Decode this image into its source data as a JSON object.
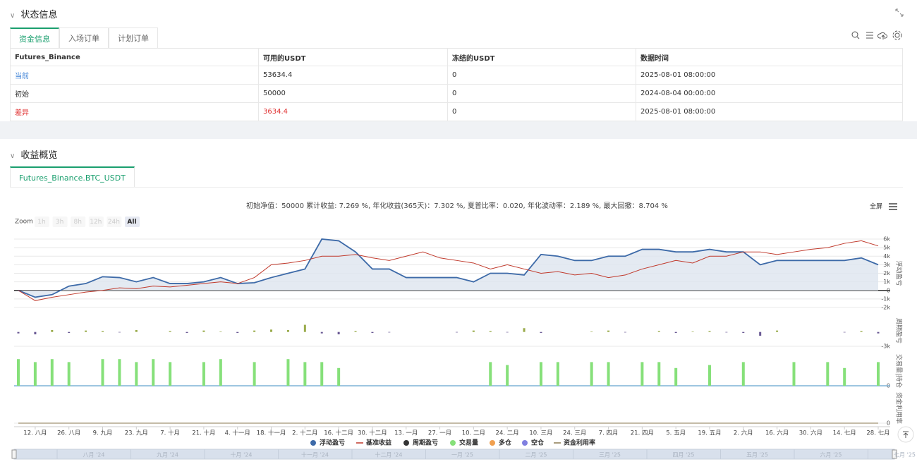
{
  "status": {
    "title": "状态信息",
    "tabs": [
      "资金信息",
      "入场订单",
      "计划订单"
    ],
    "table": {
      "header": [
        "Futures_Binance",
        "可用的USDT",
        "冻结的USDT",
        "数据时间"
      ],
      "rows": [
        [
          "当前",
          "53634.4",
          "0",
          "2025-08-01 08:00:00"
        ],
        [
          "初始",
          "50000",
          "0",
          "2024-08-04 00:00:00"
        ],
        [
          "差异",
          "3634.4",
          "0",
          "2025-08-01 08:00:00"
        ]
      ]
    }
  },
  "overview": {
    "title": "收益概览",
    "tab": "Futures_Binance.BTC_USDT",
    "summary": "初始净值：50000 累计收益: 7.269 %, 年化收益(365天)：7.302 %, 夏普比率：0.020, 年化波动率：2.189 %, 最大回撤：8.704 %",
    "fullscreen": "全屏",
    "zoom": {
      "label": "Zoom",
      "buttons": [
        "1h",
        "3h",
        "8h",
        "12h",
        "24h",
        "All"
      ]
    },
    "navigator": [
      "八月 '24",
      "九月 '24",
      "十月 '24",
      "十一月 '24",
      "十二月 '24",
      "一月 '25",
      "二月 '25",
      "三月 '25",
      "四月 '25",
      "五月 '25",
      "六月 '25",
      "七月 '25"
    ]
  },
  "chart_data": {
    "type": "line",
    "categories": [
      null,
      "12. 八月",
      null,
      "26. 八月",
      null,
      "9. 九月",
      null,
      "23. 九月",
      null,
      "7. 十月",
      null,
      "21. 十月",
      null,
      "4. 十一月",
      null,
      "18. 十一月",
      null,
      "2. 十二月",
      null,
      "16. 十二月",
      null,
      "30. 十二月",
      null,
      "13. 一月",
      null,
      "27. 一月",
      null,
      "10. 二月",
      null,
      "24. 二月",
      null,
      "10. 三月",
      null,
      "24. 三月",
      null,
      "7. 四月",
      null,
      "21. 四月",
      null,
      "5. 五月",
      null,
      "19. 五月",
      null,
      "2. 六月",
      null,
      "16. 六月",
      null,
      "30. 六月",
      null,
      "14. 七月",
      null,
      "28. 七月"
    ],
    "panels": [
      {
        "axis_label": "浮动盈亏",
        "ylim": [
          -2000,
          6000
        ],
        "yticks": [
          {
            "value": 6000,
            "label": "6k"
          },
          {
            "value": 5000,
            "label": "5k"
          },
          {
            "value": 4000,
            "label": "4k"
          },
          {
            "value": 3000,
            "label": "3k"
          },
          {
            "value": 2000,
            "label": "2k"
          },
          {
            "value": 1000,
            "label": "1k"
          },
          0,
          {
            "value": -1000,
            "label": "-1k"
          },
          {
            "value": -2000,
            "label": "-2k"
          }
        ],
        "series": [
          {
            "name": "浮动盈亏",
            "kind": "area",
            "color": "#3d6aa8",
            "values": [
              0,
              -800,
              -500,
              500,
              800,
              1600,
              1500,
              1000,
              1500,
              800,
              800,
              1000,
              1500,
              800,
              900,
              1500,
              2000,
              2500,
              6000,
              5800,
              4500,
              2500,
              2500,
              1500,
              1500,
              1500,
              1500,
              1000,
              2000,
              2000,
              1800,
              4200,
              4000,
              3500,
              3500,
              4000,
              4000,
              4800,
              4800,
              4500,
              4500,
              4800,
              4500,
              4500,
              3000,
              3500,
              3500,
              3500,
              3500,
              3500,
              3800,
              3000
            ]
          },
          {
            "name": "基准收益",
            "kind": "line",
            "color": "#c0392b",
            "values": [
              0,
              -1200,
              -800,
              -500,
              -200,
              0,
              300,
              200,
              500,
              400,
              600,
              800,
              1000,
              800,
              1500,
              3000,
              3200,
              3500,
              4000,
              4000,
              4200,
              3800,
              3500,
              4000,
              4500,
              3800,
              3500,
              3200,
              2500,
              3000,
              2500,
              2000,
              2200,
              1800,
              2000,
              1500,
              1800,
              2500,
              3000,
              3500,
              3200,
              4000,
              4000,
              4500,
              4500,
              4200,
              4500,
              4800,
              5000,
              5500,
              5800,
              5200
            ]
          }
        ]
      },
      {
        "axis_label": "周期盈亏",
        "ylim": [
          -3000,
          3500
        ],
        "yticks": [
          {
            "value": -3000,
            "label": "-3k"
          }
        ],
        "series": [
          {
            "name": "周期盈亏",
            "kind": "bar",
            "color": "#333333",
            "positive_color": "#9aab4b",
            "negative_color": "#6b5b95",
            "values": [
              -300,
              -500,
              400,
              -200,
              300,
              200,
              -100,
              400,
              0,
              200,
              -200,
              300,
              100,
              -200,
              300,
              500,
              400,
              1500,
              -300,
              -500,
              200,
              -200,
              -100,
              0,
              0,
              0,
              -100,
              300,
              200,
              -100,
              800,
              -200,
              0,
              0,
              100,
              300,
              -100,
              0,
              200,
              -200,
              100,
              200,
              -100,
              -200,
              -800,
              300,
              0,
              0,
              0,
              -100,
              200,
              -300
            ]
          }
        ]
      },
      {
        "axis_label": "交易量|持仓",
        "ylim": [
          0,
          50
        ],
        "yticks": [
          0
        ],
        "series": [
          {
            "name": "交易量",
            "kind": "bar",
            "color": "#86e07a",
            "values": [
              45,
              40,
              45,
              40,
              0,
              45,
              45,
              40,
              45,
              40,
              0,
              40,
              45,
              0,
              40,
              0,
              45,
              40,
              40,
              30,
              0,
              0,
              0,
              0,
              0,
              0,
              0,
              0,
              40,
              35,
              0,
              40,
              40,
              0,
              40,
              40,
              0,
              40,
              40,
              30,
              0,
              35,
              0,
              40,
              0,
              0,
              40,
              0,
              40,
              30,
              0,
              40
            ]
          },
          {
            "name": "多仓",
            "kind": "bar",
            "color": "#f0a050",
            "values": [
              0,
              0,
              0,
              0,
              0,
              0,
              0,
              0,
              0,
              0,
              0,
              0,
              0,
              0,
              0,
              0,
              0,
              0,
              0,
              0,
              0,
              0,
              0,
              0,
              0,
              0,
              0,
              0,
              0,
              0,
              0,
              0,
              0,
              0,
              0,
              0,
              0,
              0,
              0,
              0,
              0,
              0,
              0,
              0,
              0,
              0,
              0,
              0,
              0,
              0,
              0,
              0
            ]
          },
          {
            "name": "空仓",
            "kind": "bar",
            "color": "#8080e0",
            "values": [
              0,
              0,
              0,
              0,
              0,
              0,
              0,
              0,
              0,
              0,
              0,
              0,
              0,
              0,
              0,
              0,
              0,
              0,
              0,
              0,
              0,
              0,
              0,
              0,
              0,
              0,
              0,
              0,
              0,
              0,
              0,
              0,
              0,
              0,
              0,
              0,
              0,
              0,
              0,
              0,
              0,
              0,
              0,
              0,
              0,
              0,
              0,
              0,
              0,
              0,
              0,
              0
            ]
          }
        ]
      },
      {
        "axis_label": "资金利用率",
        "ylim": [
          0,
          100
        ],
        "yticks": [
          0
        ],
        "series": [
          {
            "name": "资金利用率",
            "kind": "line",
            "color": "#8a7a50",
            "values": [
              0,
              0,
              0,
              0,
              0,
              0,
              0,
              0,
              0,
              0,
              0,
              0,
              0,
              0,
              0,
              0,
              0,
              0,
              0,
              0,
              0,
              0,
              0,
              0,
              0,
              0,
              0,
              0,
              0,
              0,
              0,
              0,
              0,
              0,
              0,
              0,
              0,
              0,
              0,
              0,
              0,
              0,
              0,
              0,
              0,
              0,
              0,
              0,
              0,
              0,
              0,
              0
            ]
          }
        ]
      }
    ]
  }
}
